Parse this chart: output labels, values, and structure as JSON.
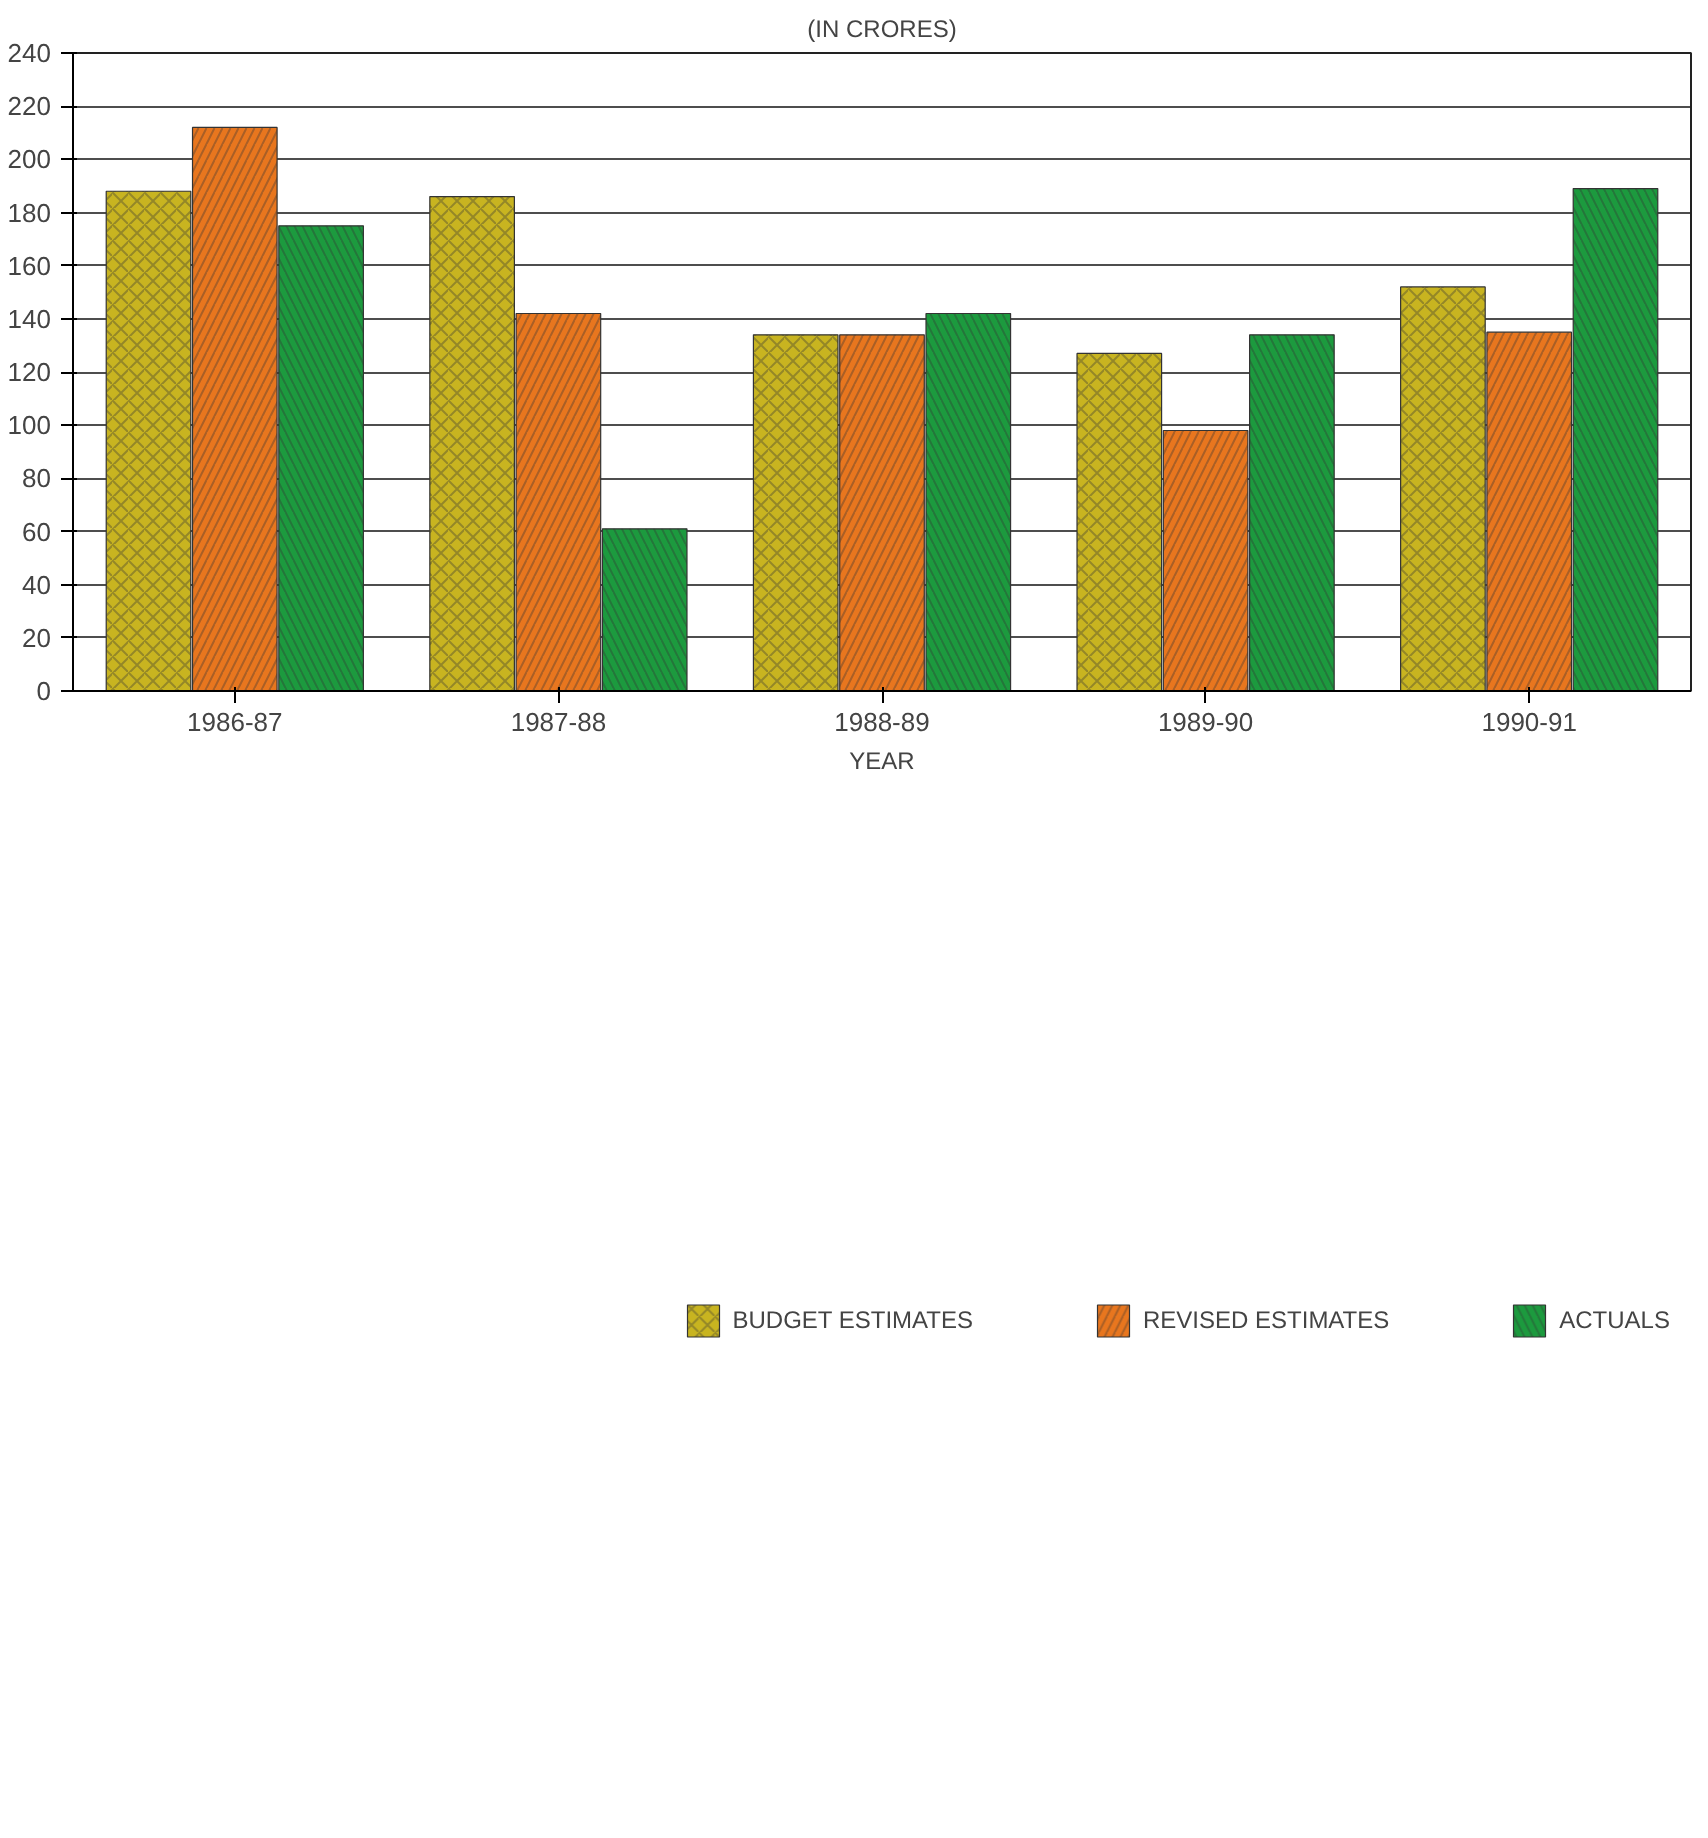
{
  "chart_data": {
    "type": "bar",
    "subtitle": "(IN CRORES)",
    "xlabel": "YEAR",
    "categories": [
      "1986-87",
      "1987-88",
      "1988-89",
      "1989-90",
      "1990-91"
    ],
    "series": [
      {
        "name": "BUDGET ESTIMATES",
        "color": "#c8b420",
        "values": [
          188,
          186,
          134,
          127,
          152
        ]
      },
      {
        "name": "REVISED ESTIMATES",
        "color": "#e8761e",
        "values": [
          212,
          142,
          134,
          98,
          135
        ]
      },
      {
        "name": "ACTUALS",
        "color": "#1c9a3e",
        "values": [
          175,
          61,
          142,
          134,
          189
        ]
      }
    ],
    "ylim": [
      0,
      240
    ],
    "yticks": [
      0,
      20,
      40,
      60,
      80,
      100,
      120,
      140,
      160,
      180,
      200,
      220,
      240
    ],
    "grid": "y",
    "legend": "bottom"
  }
}
